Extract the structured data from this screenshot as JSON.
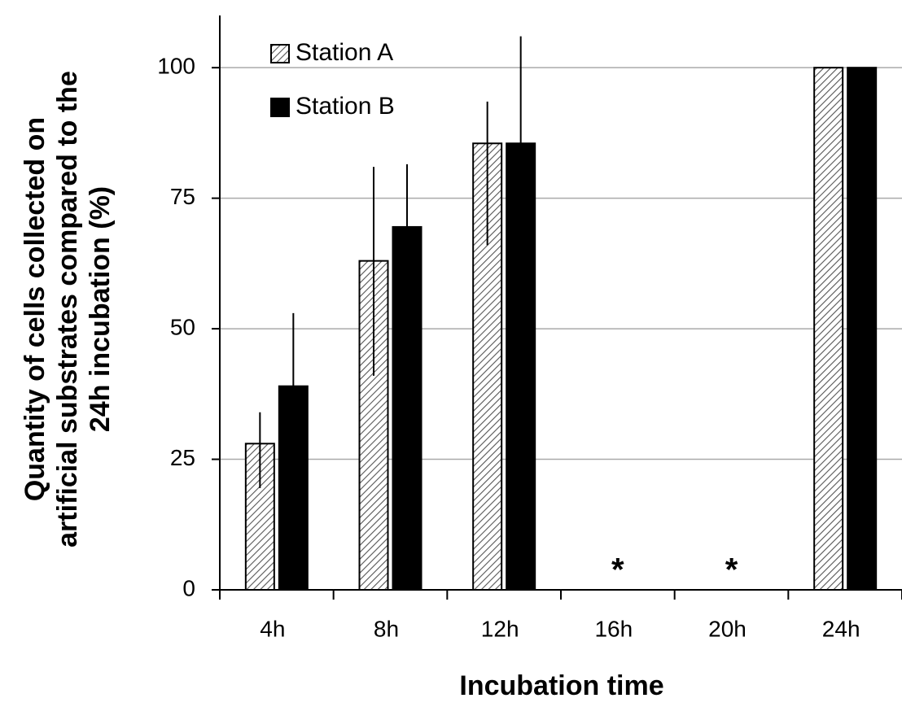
{
  "chart_data": {
    "type": "bar",
    "x_label": "Incubation time",
    "y_label": [
      "Quantity of cells collected on",
      "artificial substrates compared to the",
      "24h incubation (%)"
    ],
    "categories": [
      "4h",
      "8h",
      "12h",
      "16h",
      "20h",
      "24h"
    ],
    "series": [
      {
        "name": "Station A",
        "color": "#ffffff",
        "pattern": "hatch",
        "values": [
          28,
          63,
          85.5,
          null,
          null,
          100
        ],
        "error_plus": [
          6,
          18,
          8,
          null,
          null,
          null
        ],
        "error_minus": [
          8.5,
          22,
          19.5,
          null,
          null,
          null
        ]
      },
      {
        "name": "Station B",
        "color": "#000000",
        "values": [
          39,
          69.5,
          85.5,
          null,
          null,
          100
        ],
        "error_plus": [
          14,
          12,
          20.5,
          null,
          null,
          null
        ],
        "error_minus": [
          14,
          12,
          20.5,
          null,
          null,
          null
        ]
      }
    ],
    "annotations": [
      {
        "category": "16h",
        "text": "*"
      },
      {
        "category": "20h",
        "text": "*"
      }
    ],
    "ylim": [
      0,
      110
    ],
    "yticks": [
      0,
      25,
      50,
      75,
      100
    ],
    "grid": true,
    "legend": "top-left"
  }
}
